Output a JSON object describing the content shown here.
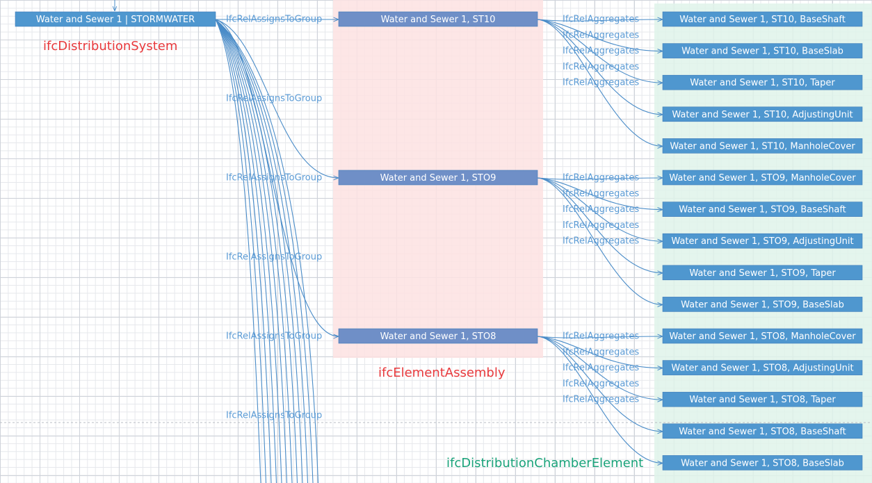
{
  "system": {
    "label": "Water and Sewer 1 | STORMWATER",
    "class": "ifcDistributionSystem"
  },
  "assembly_class": "ifcElementAssembly",
  "element_class": "ifcDistributionChamberElement",
  "group_edge_labels": [
    "IfcRelAssignsToGroup",
    "IfcRelAssignsToGroup",
    "IfcRelAssignsToGroup",
    "IfcRelAssignsToGroup",
    "IfcRelAssignsToGroup",
    "IfcRelAssignsToGroup"
  ],
  "assemblies": [
    {
      "label": "Water and Sewer 1, ST10",
      "aggregate_labels": [
        "IfcRelAggregates",
        "IfcRelAggregates",
        "IfcRelAggregates",
        "IfcRelAggregates",
        "IfcRelAggregates"
      ],
      "elements": [
        "Water and Sewer 1, ST10, BaseShaft",
        "Water and Sewer 1, ST10, BaseSlab",
        "Water and Sewer 1, ST10, Taper",
        "Water and Sewer 1, ST10, AdjustingUnit",
        "Water and Sewer 1, ST10, ManholeCover"
      ]
    },
    {
      "label": "Water and Sewer 1, STO9",
      "aggregate_labels": [
        "IfcRelAggregates",
        "IfcRelAggregates",
        "IfcRelAggregates",
        "IfcRelAggregates",
        "IfcRelAggregates"
      ],
      "elements": [
        "Water and Sewer 1, STO9, ManholeCover",
        "Water and Sewer 1, STO9, BaseShaft",
        "Water and Sewer 1, STO9, AdjustingUnit",
        "Water and Sewer 1, STO9, Taper",
        "Water and Sewer 1, STO9, BaseSlab"
      ]
    },
    {
      "label": "Water and Sewer 1, STO8",
      "aggregate_labels": [
        "IfcRelAggregates",
        "IfcRelAggregates",
        "IfcRelAggregates",
        "IfcRelAggregates",
        "IfcRelAggregates"
      ],
      "elements": [
        "Water and Sewer 1, STO8, ManholeCover",
        "Water and Sewer 1, STO8, AdjustingUnit",
        "Water and Sewer 1, STO8, Taper",
        "Water and Sewer 1, STO8, BaseShaft",
        "Water and Sewer 1, STO8, BaseSlab"
      ]
    }
  ]
}
